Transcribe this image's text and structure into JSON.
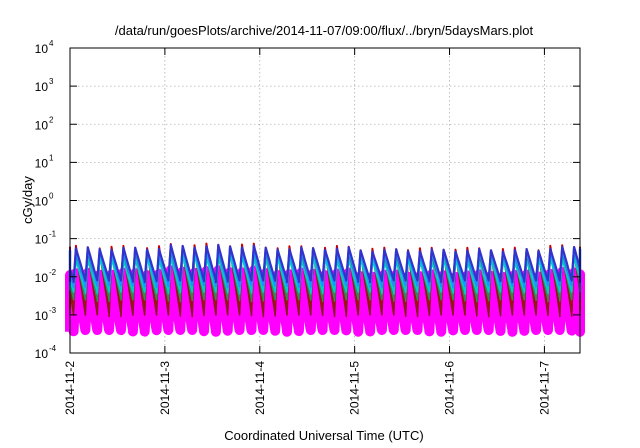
{
  "chart_data": {
    "type": "line",
    "title": "/data/run/goesPlots/archive/2014-11-07/09:00/flux/../bryn/5daysMars.plot",
    "xlabel": "Coordinated Universal Time (UTC)",
    "ylabel": "cGy/day",
    "x_scale": "time",
    "y_scale": "log",
    "xlim": [
      "2014-11-02T00:00",
      "2014-11-07T09:00"
    ],
    "ylim": [
      0.0001,
      10000
    ],
    "x_ticks": [
      "2014-11-2",
      "2014-11-3",
      "2014-11-4",
      "2014-11-5",
      "2014-11-6",
      "2014-11-7"
    ],
    "y_ticks": [
      {
        "base": "10",
        "exp": "-4"
      },
      {
        "base": "10",
        "exp": "-3"
      },
      {
        "base": "10",
        "exp": "-2"
      },
      {
        "base": "10",
        "exp": "-1"
      },
      {
        "base": "10",
        "exp": "0"
      },
      {
        "base": "10",
        "exp": "1"
      },
      {
        "base": "10",
        "exp": "2"
      },
      {
        "base": "10",
        "exp": "3"
      },
      {
        "base": "10",
        "exp": "4"
      }
    ],
    "grid": true,
    "legend": "none",
    "pattern": {
      "description_period_hours": 3,
      "peak_hour_offset": 0.6,
      "decay": "exponential"
    },
    "series": [
      {
        "color": "#ff00ff",
        "peak": 0.012,
        "trough": 0.0004
      },
      {
        "color": "#cc0000",
        "peak": 0.06,
        "trough": 0.0015
      },
      {
        "color": "#8b1a1a",
        "peak": 0.045,
        "trough": 0.001
      },
      {
        "color": "#2e8b57",
        "peak": 0.035,
        "trough": 0.0025
      },
      {
        "color": "#00cccc",
        "peak": 0.03,
        "trough": 0.004
      },
      {
        "color": "#1e90ff",
        "peak": 0.05,
        "trough": 0.006
      },
      {
        "color": "#3333cc",
        "peak": 0.055,
        "trough": 0.008
      }
    ],
    "peak_modulation": [
      {
        "day": "2014-11-02",
        "factor": 1.0
      },
      {
        "day": "2014-11-03",
        "factor": 1.15
      },
      {
        "day": "2014-11-04",
        "factor": 1.0
      },
      {
        "day": "2014-11-05",
        "factor": 0.9
      },
      {
        "day": "2014-11-06",
        "factor": 0.9
      },
      {
        "day": "2014-11-07",
        "factor": 1.05
      }
    ]
  }
}
